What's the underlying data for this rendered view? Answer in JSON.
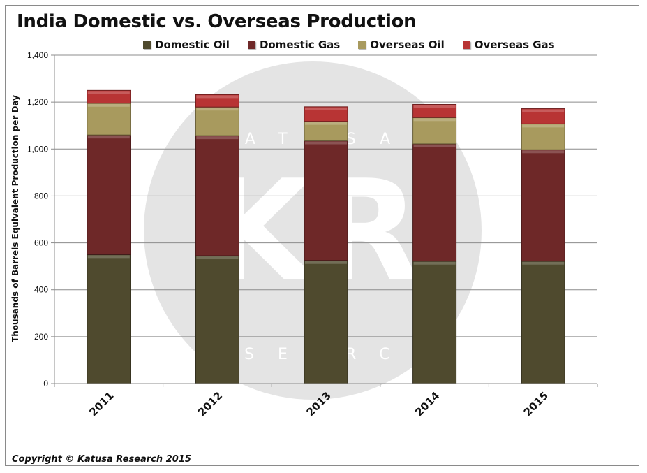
{
  "title": "India Domestic vs. Overseas Production",
  "footer": "Copyright © Katusa Research 2015",
  "watermark": {
    "top_text": "KATUSA",
    "big_text": "KR",
    "bottom_text": "RESEARCH"
  },
  "chart_data": {
    "type": "bar",
    "stacked": true,
    "title": "India Domestic vs. Overseas Production",
    "xlabel": "",
    "ylabel": "Thousands of Barrels Equivalent Production per Day",
    "ylim": [
      0,
      1400
    ],
    "yticks": [
      0,
      200,
      400,
      600,
      800,
      1000,
      1200,
      1400
    ],
    "ytick_labels": [
      "0",
      "200",
      "400",
      "600",
      "800",
      "1,000",
      "1,200",
      "1,400"
    ],
    "categories": [
      "2011",
      "2012",
      "2013",
      "2014",
      "2015"
    ],
    "grid": true,
    "legend_position": "top",
    "series": [
      {
        "name": "Domestic Oil",
        "color": "#4f4a2e",
        "values": [
          550,
          545,
          525,
          522,
          522
        ]
      },
      {
        "name": "Domestic Gas",
        "color": "#6e2828",
        "values": [
          510,
          512,
          510,
          500,
          475
        ]
      },
      {
        "name": "Overseas Oil",
        "color": "#a89a5e",
        "values": [
          135,
          122,
          83,
          112,
          110
        ]
      },
      {
        "name": "Overseas Gas",
        "color": "#b83434",
        "values": [
          55,
          53,
          62,
          56,
          65
        ]
      }
    ]
  }
}
